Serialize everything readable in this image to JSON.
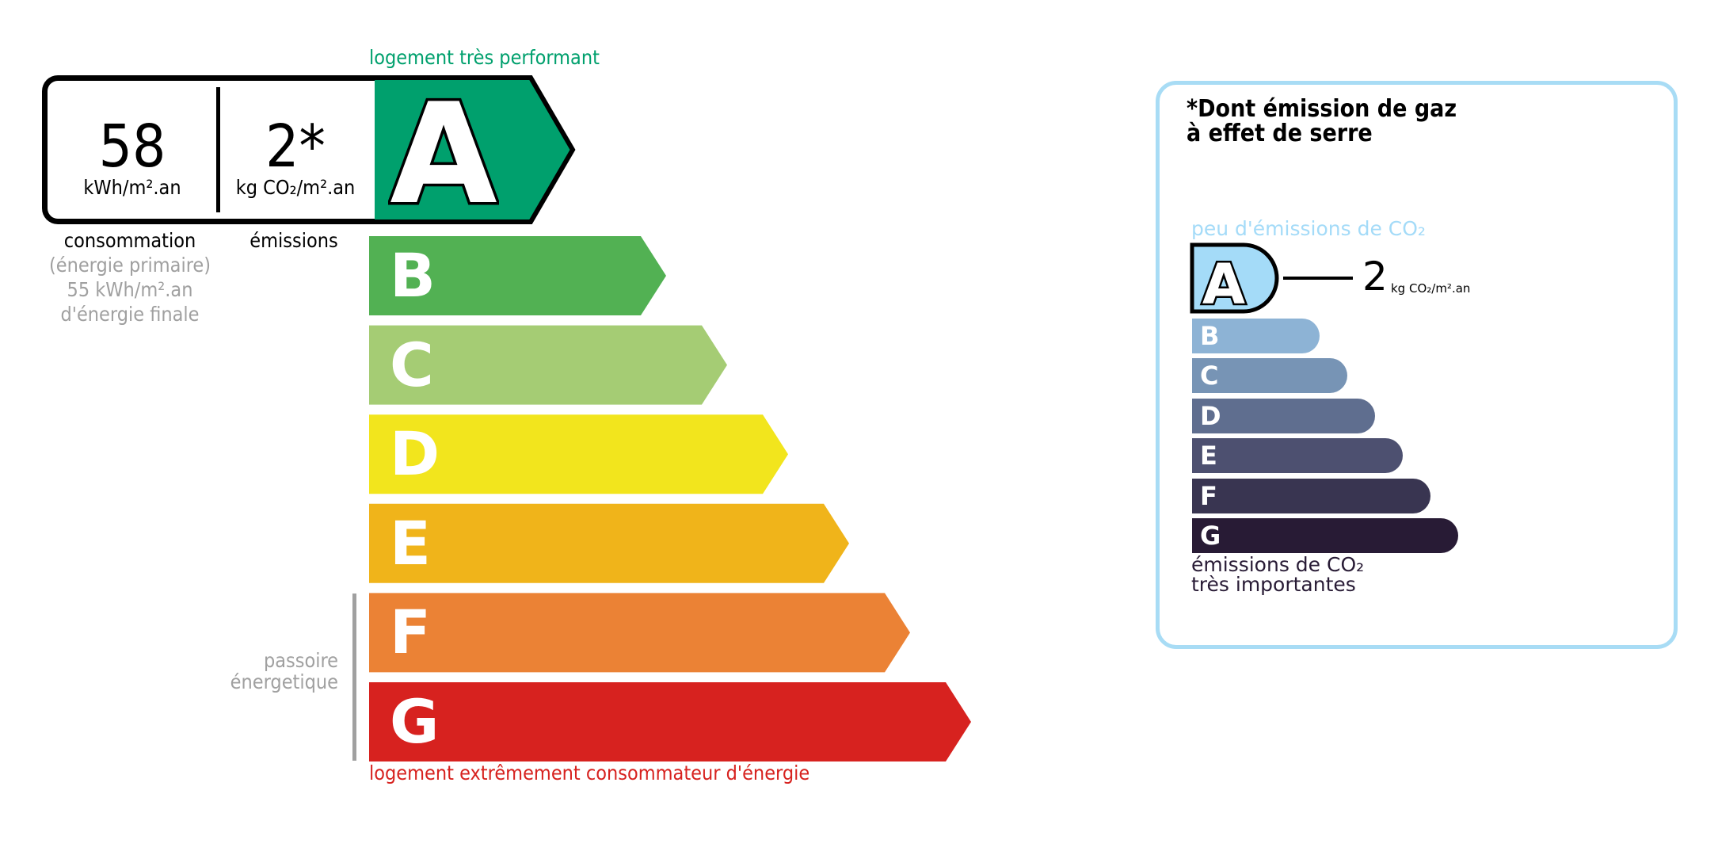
{
  "energy_scale": {
    "top_label": "logement très performant",
    "bottom_label": "logement extrêmement consommateur d'énergie",
    "classes": [
      {
        "letter": "A",
        "color": "#00a06d"
      },
      {
        "letter": "B",
        "color": "#52b153"
      },
      {
        "letter": "C",
        "color": "#a5cc74"
      },
      {
        "letter": "D",
        "color": "#f2e51d"
      },
      {
        "letter": "E",
        "color": "#f0b41a"
      },
      {
        "letter": "F",
        "color": "#eb8235"
      },
      {
        "letter": "G",
        "color": "#d7221f"
      }
    ],
    "current_class": "A",
    "passoire_label_line1": "passoire",
    "passoire_label_line2": "énergetique"
  },
  "values": {
    "consumption": "58",
    "consumption_unit": "kWh/m².an",
    "emissions": "2*",
    "emissions_unit": "kg CO₂/m².an",
    "consumption_label": "consommation",
    "consumption_sub": "(énergie primaire)",
    "final_energy": "55 kWh/m².an",
    "final_energy_label": "d'énergie finale",
    "emissions_label": "émissions"
  },
  "co2_panel": {
    "title_line1": "*Dont émission de gaz",
    "title_line2": "à effet de serre",
    "top_label": "peu d'émissions de CO₂",
    "bottom_label_line1": "émissions de CO₂",
    "bottom_label_line2": "très importantes",
    "current_class": "A",
    "value": "2",
    "unit": "kg CO₂/m².an",
    "classes": [
      {
        "letter": "A",
        "color": "#a4dbf8"
      },
      {
        "letter": "B",
        "color": "#8db3d5"
      },
      {
        "letter": "C",
        "color": "#7794b5"
      },
      {
        "letter": "D",
        "color": "#5f6e8f"
      },
      {
        "letter": "E",
        "color": "#4d5070"
      },
      {
        "letter": "F",
        "color": "#393551"
      },
      {
        "letter": "G",
        "color": "#281b35"
      }
    ]
  }
}
